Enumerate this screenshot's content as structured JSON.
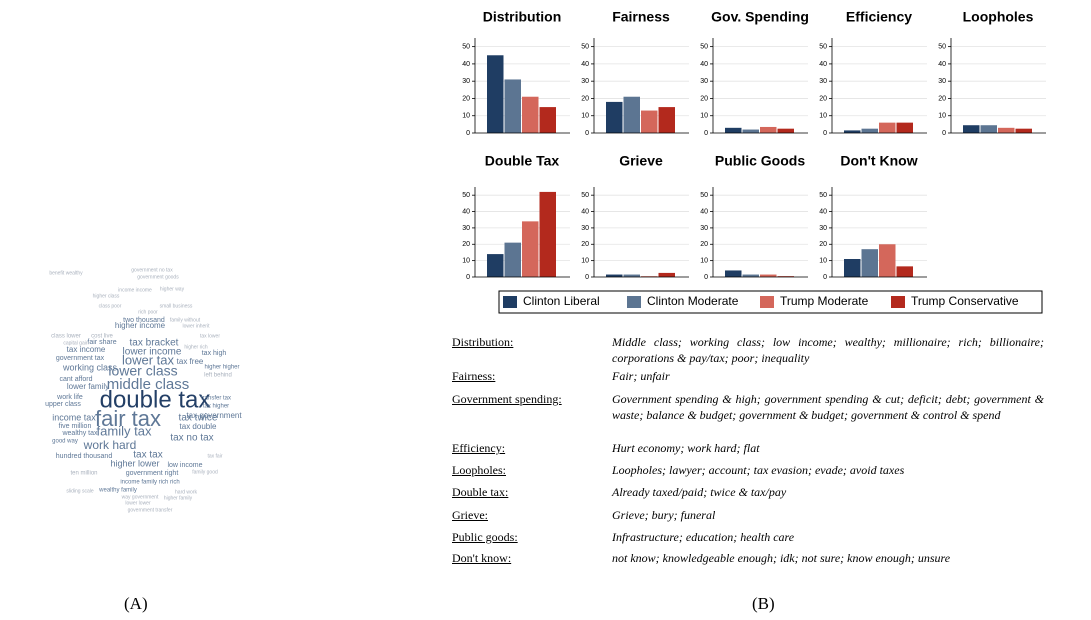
{
  "wordcloud": {
    "words": [
      "double tax",
      "fair tax",
      "middle class",
      "lower class",
      "lower tax",
      "family tax",
      "work hard",
      "tax twice",
      "tax no tax",
      "tax bracket",
      "lower income",
      "working class",
      "income tax",
      "tax tax",
      "higher lower",
      "tax government",
      "higher income",
      "tax income",
      "two thousand",
      "government tax",
      "tax double",
      "wealthy tax",
      "lower family",
      "cant afford",
      "five million",
      "work life",
      "upper class",
      "good way",
      "tax free",
      "tax high",
      "left behind",
      "higher higher",
      "transfer tax",
      "tax higher",
      "low income",
      "government right",
      "income family rich rich",
      "wealthy family",
      "hundred thousand",
      "ten million",
      "fair share",
      "benefit wealthy",
      "government no tax",
      "government goods",
      "income income",
      "higher way",
      "higher class",
      "small business",
      "family without",
      "rich poor",
      "cost live",
      "class lower",
      "capital gain",
      "higher rich",
      "tax lower",
      "lower inherit",
      "way government",
      "government transfer",
      "higher family",
      "sliding scale",
      "lower lower",
      "hard work",
      "family good",
      "class poor",
      "tax fair"
    ],
    "caption": "(A)"
  },
  "chart_data": {
    "type": "bar",
    "categories": [
      "Distribution",
      "Fairness",
      "Gov. Spending",
      "Efficiency",
      "Loopholes",
      "Double Tax",
      "Grieve",
      "Public Goods",
      "Don't Know"
    ],
    "series": [
      {
        "name": "Clinton Liberal",
        "color": "#1f3d63",
        "values": [
          45,
          18,
          3,
          1.5,
          4.5,
          14,
          1.5,
          4,
          11
        ]
      },
      {
        "name": "Clinton Moderate",
        "color": "#5c7592",
        "values": [
          31,
          21,
          2,
          2.5,
          4.5,
          21,
          1.5,
          1.5,
          17
        ]
      },
      {
        "name": "Trump Moderate",
        "color": "#d4675b",
        "values": [
          21,
          13,
          3.5,
          6,
          3,
          34,
          0.5,
          1.5,
          20
        ]
      },
      {
        "name": "Trump Conservative",
        "color": "#b3291d",
        "values": [
          15,
          15,
          2.5,
          6,
          2.5,
          52,
          2.5,
          0.5,
          6.5
        ]
      }
    ],
    "ylim": [
      0,
      55
    ],
    "yticks": [
      0,
      10,
      20,
      30,
      40,
      50
    ],
    "grid": true,
    "caption": "(B)"
  },
  "table": {
    "rows": [
      [
        "Distribution:",
        "Middle class; working class; low income; wealthy; millionaire; rich; billionaire; corporations & pay/tax; poor; inequality"
      ],
      [
        "Fairness:",
        "Fair; unfair"
      ],
      [
        "Government spending:",
        "Government spending & high; government spending & cut; deficit; debt; government & waste; balance & budget; government & budget; government & control & spend"
      ],
      [
        "Efficiency:",
        "Hurt economy; work hard; flat"
      ],
      [
        "Loopholes:",
        "Loopholes; lawyer; account; tax evasion; evade; avoid taxes"
      ],
      [
        "Double tax:",
        "Already taxed/paid; twice & tax/pay"
      ],
      [
        "Grieve:",
        "Grieve; bury; funeral"
      ],
      [
        "Public goods:",
        "Infrastructure; education; health care"
      ],
      [
        "Don't know:",
        "not know; knowledgeable enough; idk; not sure; know enough; unsure"
      ]
    ]
  }
}
